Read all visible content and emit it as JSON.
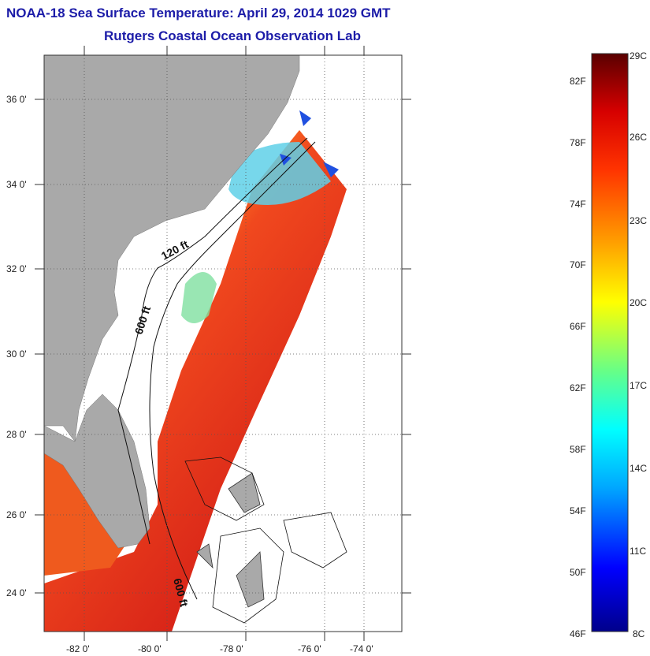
{
  "header": {
    "title": "NOAA-18 Sea Surface Temperature:  April 29, 2014 1029 GMT",
    "subtitle": "Rutgers Coastal Ocean Observation Lab"
  },
  "map": {
    "lat_labels": [
      "36 0'",
      "34 0'",
      "32 0'",
      "30 0'",
      "28 0'",
      "26 0'",
      "24 0'"
    ],
    "lon_labels": [
      "-82 0'",
      "-80 0'",
      "-78 0'",
      "-76 0'",
      "-74 0'"
    ],
    "contour_labels": [
      "120 ft",
      "600 ft",
      "600 ft"
    ],
    "colors": {
      "land": "#a9a9a9",
      "no_data": "#ffffff",
      "warm_water": "#e83a1e",
      "cool_water": "#2f5fe0"
    }
  },
  "colorbar": {
    "fahrenheit_labels": [
      "82F",
      "78F",
      "74F",
      "70F",
      "66F",
      "62F",
      "58F",
      "54F",
      "50F",
      "46F"
    ],
    "celsius_labels": [
      "29C",
      "26C",
      "23C",
      "20C",
      "17C",
      "14C",
      "11C",
      "8C"
    ],
    "palette": [
      "#00008b",
      "#0000ff",
      "#00bfff",
      "#00ffff",
      "#7fff7f",
      "#ffff00",
      "#ff9900",
      "#ff3300",
      "#cc0000",
      "#5a0000"
    ]
  }
}
